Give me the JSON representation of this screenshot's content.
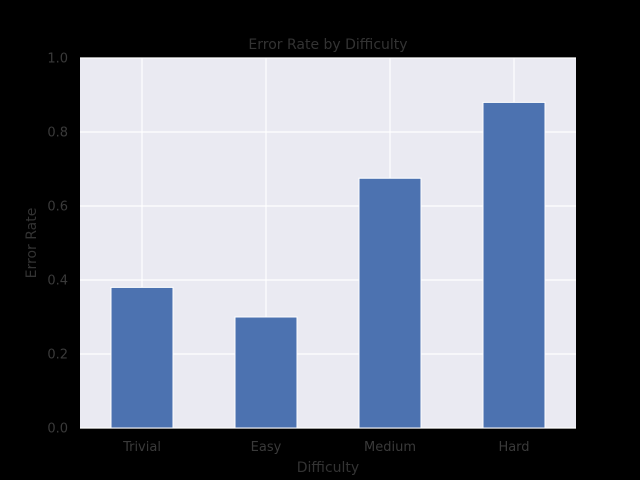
{
  "chart_data": {
    "type": "bar",
    "title": "Error Rate by Difficulty",
    "xlabel": "Difficulty",
    "ylabel": "Error Rate",
    "categories": [
      "Trivial",
      "Easy",
      "Medium",
      "Hard"
    ],
    "values": [
      0.38,
      0.3,
      0.675,
      0.88
    ],
    "ylim": [
      0.0,
      1.0
    ],
    "yticks": [
      "0.0",
      "0.2",
      "0.4",
      "0.6",
      "0.8",
      "1.0"
    ],
    "grid": true,
    "colors": {
      "bar": "#4c72b0",
      "plot_background": "#eaeaf2",
      "grid": "#ffffff",
      "page_background": "#000000"
    }
  }
}
